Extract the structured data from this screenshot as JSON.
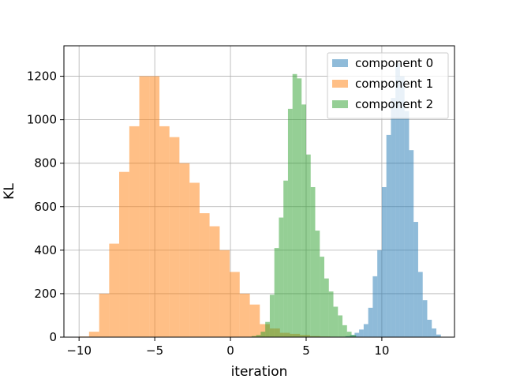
{
  "chart_data": {
    "type": "histogram",
    "xlabel": "iteration",
    "ylabel": "KL",
    "xlim": [
      -11,
      14.8
    ],
    "ylim": [
      0,
      1340
    ],
    "xticks": [
      -10,
      -5,
      0,
      5,
      10
    ],
    "xtick_labels": [
      "−10",
      "−5",
      "0",
      "5",
      "10"
    ],
    "yticks": [
      0,
      200,
      400,
      600,
      800,
      1000,
      1200
    ],
    "ytick_labels": [
      "0",
      "200",
      "400",
      "600",
      "800",
      "1000",
      "1200"
    ],
    "grid": true,
    "legend_position": "top-right",
    "series": [
      {
        "name": "component 0",
        "color": "#1f77b4",
        "opacity": 0.5,
        "bin_edges": [
          7.6,
          7.9,
          8.2,
          8.5,
          8.8,
          9.1,
          9.4,
          9.7,
          10.0,
          10.3,
          10.6,
          10.9,
          11.2,
          11.5,
          11.8,
          12.1,
          12.4,
          12.7,
          13.0,
          13.3,
          13.6,
          13.9
        ],
        "counts": [
          5,
          10,
          20,
          35,
          60,
          135,
          280,
          400,
          690,
          930,
          1100,
          1260,
          1200,
          1040,
          860,
          530,
          300,
          170,
          80,
          40,
          12
        ]
      },
      {
        "name": "component 1",
        "color": "#ff7f0e",
        "opacity": 0.5,
        "bin_edges": [
          -10.0,
          -9.34,
          -8.67,
          -8.01,
          -7.35,
          -6.68,
          -6.02,
          -5.36,
          -4.69,
          -4.03,
          -3.37,
          -2.7,
          -2.04,
          -1.38,
          -0.71,
          -0.05,
          0.61,
          1.28,
          1.94,
          2.6,
          3.27,
          3.93,
          4.59,
          5.26,
          5.92,
          6.58,
          7.25,
          7.91
        ],
        "counts": [
          3,
          25,
          200,
          430,
          760,
          970,
          1200,
          1200,
          970,
          920,
          800,
          710,
          570,
          510,
          400,
          300,
          200,
          150,
          60,
          40,
          20,
          15,
          10,
          5,
          3,
          2,
          1
        ]
      },
      {
        "name": "component 2",
        "color": "#2ca02c",
        "opacity": 0.5,
        "bin_edges": [
          1.4,
          1.7,
          2.0,
          2.3,
          2.6,
          2.9,
          3.2,
          3.5,
          3.8,
          4.1,
          4.4,
          4.7,
          5.0,
          5.3,
          5.6,
          5.9,
          6.2,
          6.5,
          6.8,
          7.1,
          7.4,
          7.7,
          8.0,
          8.3
        ],
        "counts": [
          5,
          10,
          25,
          70,
          195,
          410,
          550,
          720,
          1050,
          1210,
          1190,
          1070,
          840,
          690,
          490,
          370,
          270,
          210,
          140,
          100,
          55,
          25,
          10
        ]
      }
    ]
  }
}
